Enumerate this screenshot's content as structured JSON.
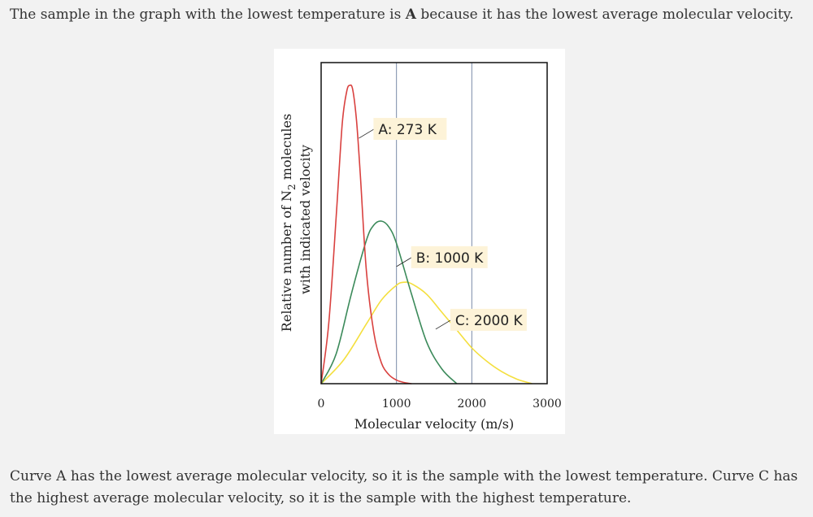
{
  "intro": {
    "text_before": "The sample in the graph with the lowest temperature is ",
    "bold": "A",
    "text_after": " because it has the lowest average molecular velocity."
  },
  "explanation": "Curve A has the lowest average molecular velocity, so it is the sample with the lowest temperature. Curve C has the highest average molecular velocity, so it is the sample with the highest temperature.",
  "chart_data": {
    "type": "line",
    "xlabel": "Molecular velocity (m/s)",
    "ylabel": {
      "line1_prefix": "Relative number of N",
      "line1_sub": "2",
      "line1_suffix": " molecules",
      "line2": "with indicated velocity"
    },
    "xlim": [
      0,
      3000
    ],
    "ylim": [
      0,
      1
    ],
    "x_ticks": [
      0,
      1000,
      2000,
      3000
    ],
    "x_tick_labels": [
      "0",
      "1000",
      "2000",
      "3000"
    ],
    "vertical_gridlines_at": [
      1000,
      2000
    ],
    "series": [
      {
        "name": "A: 273 K",
        "color": "#d9413f",
        "label_anchor_x": 630,
        "label_anchor_y": 0.85,
        "x": [
          0,
          100,
          200,
          280,
          340,
          380,
          420,
          470,
          520,
          600,
          700,
          800,
          900,
          1000,
          1100,
          1200
        ],
        "y": [
          0.0,
          0.2,
          0.56,
          0.87,
          0.98,
          1.0,
          0.985,
          0.88,
          0.7,
          0.38,
          0.17,
          0.07,
          0.03,
          0.012,
          0.004,
          0.0
        ]
      },
      {
        "name": "B: 1000 K",
        "color": "#3b8a5a",
        "label_anchor_x": 1130,
        "label_anchor_y": 0.42,
        "x": [
          0,
          200,
          400,
          600,
          700,
          800,
          900,
          1000,
          1200,
          1400,
          1600,
          1800
        ],
        "y": [
          0.0,
          0.1,
          0.3,
          0.48,
          0.532,
          0.545,
          0.525,
          0.47,
          0.3,
          0.14,
          0.05,
          0.0
        ]
      },
      {
        "name": "C: 2000 K",
        "color": "#f4df3e",
        "label_anchor_x": 1650,
        "label_anchor_y": 0.21,
        "x": [
          0,
          300,
          600,
          800,
          1000,
          1100,
          1200,
          1400,
          1600,
          1800,
          2000,
          2200,
          2400,
          2600,
          2800
        ],
        "y": [
          0.0,
          0.08,
          0.2,
          0.28,
          0.33,
          0.34,
          0.335,
          0.3,
          0.24,
          0.18,
          0.12,
          0.075,
          0.04,
          0.015,
          0.0
        ]
      }
    ]
  }
}
